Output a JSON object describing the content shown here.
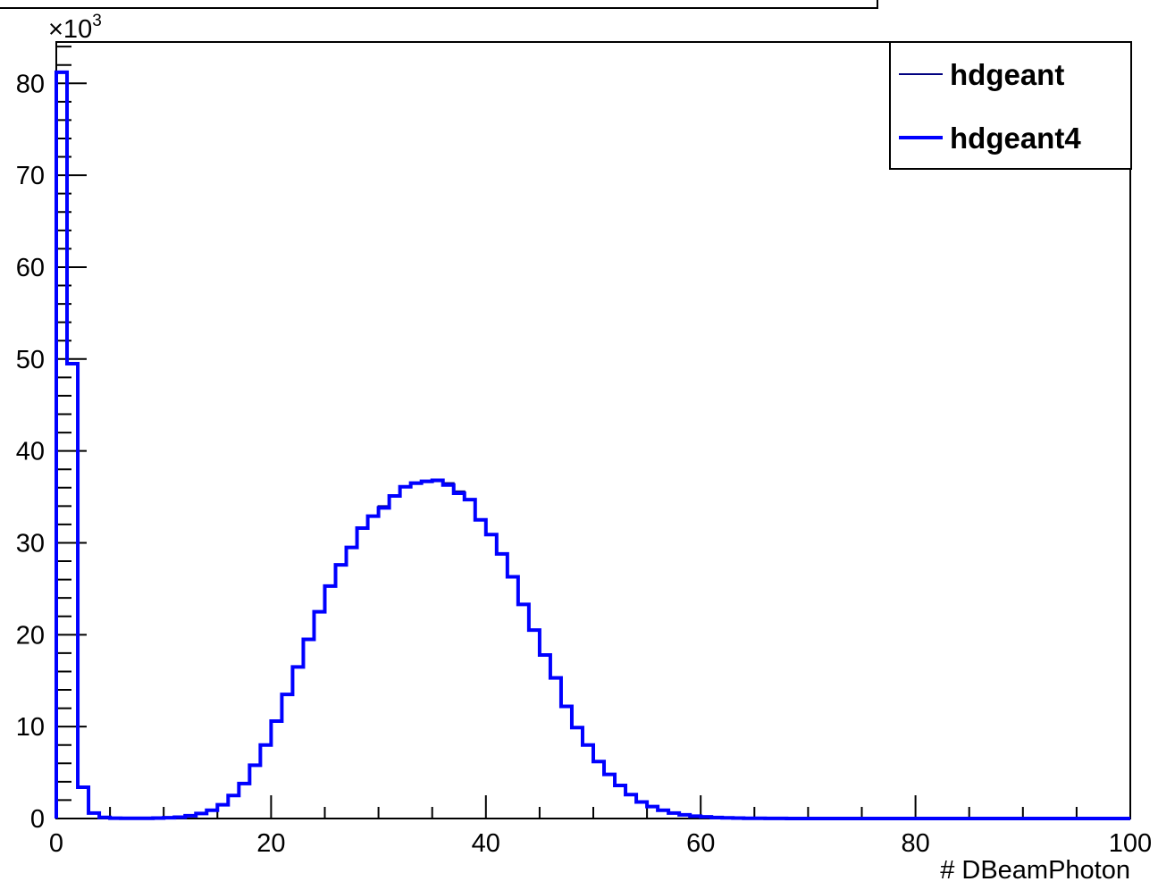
{
  "chart_data": {
    "type": "line",
    "xlabel": "# DBeamPhoton",
    "ylabel": "",
    "y_multiplier_label": "×10",
    "y_multiplier_exp": "3",
    "xlim": [
      0,
      100
    ],
    "ylim": [
      0,
      84.5
    ],
    "x_ticks": [
      "0",
      "20",
      "40",
      "60",
      "80",
      "100"
    ],
    "y_ticks": [
      "0",
      "10",
      "20",
      "30",
      "40",
      "50",
      "60",
      "70",
      "80"
    ],
    "bin_width": 1,
    "legend_position": "top-right",
    "series": [
      {
        "name": "hdgeant",
        "color": "#000080",
        "values": [
          81.2,
          49.5,
          3.4,
          0.6,
          0.12,
          0.04,
          0.02,
          0.02,
          0.03,
          0.05,
          0.09,
          0.15,
          0.3,
          0.55,
          0.9,
          1.5,
          2.5,
          3.8,
          5.8,
          8.0,
          10.6,
          13.5,
          16.5,
          19.5,
          22.5,
          25.3,
          27.6,
          29.5,
          31.6,
          32.9,
          34.0,
          35.1,
          36.1,
          36.4,
          36.6,
          36.7,
          36.5,
          35.6,
          34.7,
          32.5,
          30.9,
          28.8,
          26.3,
          23.3,
          20.5,
          17.8,
          15.3,
          12.2,
          9.9,
          8.0,
          6.2,
          4.8,
          3.6,
          2.6,
          1.8,
          1.3,
          0.9,
          0.6,
          0.4,
          0.25,
          0.18,
          0.11,
          0.07,
          0.05,
          0.03,
          0.02,
          0.01,
          0.01,
          0,
          0,
          0,
          0,
          0,
          0,
          0,
          0,
          0,
          0,
          0,
          0,
          0,
          0,
          0,
          0,
          0,
          0,
          0,
          0,
          0,
          0,
          0,
          0,
          0,
          0,
          0,
          0,
          0,
          0,
          0,
          0
        ]
      },
      {
        "name": "hdgeant4",
        "color": "#0000ff",
        "values": [
          81.2,
          49.5,
          3.4,
          0.6,
          0.12,
          0.04,
          0.02,
          0.02,
          0.03,
          0.05,
          0.09,
          0.15,
          0.3,
          0.55,
          0.9,
          1.5,
          2.5,
          3.8,
          5.8,
          8.0,
          10.6,
          13.5,
          16.5,
          19.5,
          22.5,
          25.3,
          27.6,
          29.5,
          31.6,
          32.9,
          33.8,
          35.1,
          36.1,
          36.5,
          36.7,
          36.8,
          36.3,
          35.4,
          34.7,
          32.5,
          30.9,
          28.8,
          26.3,
          23.3,
          20.5,
          17.8,
          15.3,
          12.2,
          9.9,
          8.0,
          6.2,
          4.8,
          3.6,
          2.6,
          1.8,
          1.3,
          0.9,
          0.6,
          0.4,
          0.25,
          0.18,
          0.11,
          0.07,
          0.05,
          0.03,
          0.02,
          0.01,
          0.01,
          0,
          0,
          0,
          0,
          0,
          0,
          0,
          0,
          0,
          0,
          0,
          0,
          0,
          0,
          0,
          0,
          0,
          0,
          0,
          0,
          0,
          0,
          0,
          0,
          0,
          0,
          0,
          0,
          0,
          0,
          0,
          0
        ]
      }
    ]
  }
}
